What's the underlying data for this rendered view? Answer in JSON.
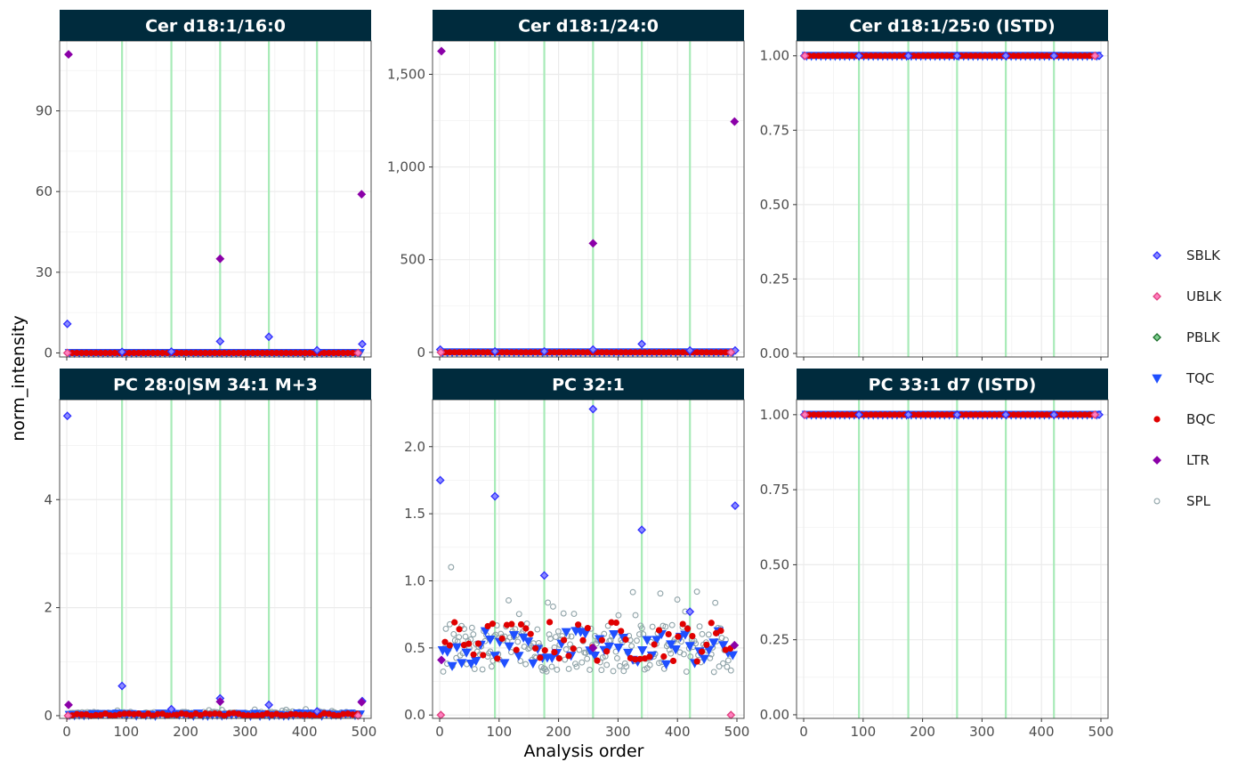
{
  "chart_data": {
    "type": "scatter",
    "xlabel": "Analysis order",
    "ylabel": "norm_intensity",
    "x_ticks": [
      0,
      100,
      200,
      300,
      400,
      500
    ],
    "x_tick_labels": [
      "0",
      "100",
      "200",
      "300",
      "400",
      "500"
    ],
    "xlim": [
      -12,
      512
    ],
    "batch_lines": [
      93,
      176,
      258,
      340,
      421
    ],
    "legend": {
      "position": "right",
      "entries": [
        {
          "key": "SBLK",
          "label": "SBLK",
          "shape": "diamond",
          "fill": "#8a8aff",
          "stroke": "#2e2eff"
        },
        {
          "key": "UBLK",
          "label": "UBLK",
          "shape": "diamond",
          "fill": "#ff7fbf",
          "stroke": "#e0407f"
        },
        {
          "key": "PBLK",
          "label": "PBLK",
          "shape": "diamond",
          "fill": "#7fcf8f",
          "stroke": "#1a6e2a"
        },
        {
          "key": "TQC",
          "label": "TQC",
          "shape": "triangle-down",
          "fill": "#1f4fff",
          "stroke": "#1f4fff"
        },
        {
          "key": "BQC",
          "label": "BQC",
          "shape": "circle",
          "fill": "#e00000",
          "stroke": "#e00000"
        },
        {
          "key": "LTR",
          "label": "LTR",
          "shape": "diamond",
          "fill": "#8b00a8",
          "stroke": "#8b00a8"
        },
        {
          "key": "SPL",
          "label": "SPL",
          "shape": "circle-open",
          "fill": "none",
          "stroke": "#8fa3a8"
        }
      ]
    },
    "panels": [
      {
        "title": "Cer d18:1/16:0",
        "ylim": [
          -1.5,
          116
        ],
        "y_ticks": [
          0,
          30,
          60,
          90
        ],
        "y_tick_labels": [
          "0",
          "30",
          "60",
          "90"
        ],
        "baseline": {
          "SPL": 0,
          "TQC": 0,
          "BQC": 0,
          "SBLK": 0,
          "UBLK": 0,
          "spread": 0
        },
        "points": {
          "SBLK": [
            [
              1,
              10.8
            ],
            [
              93,
              0.4
            ],
            [
              176,
              0.5
            ],
            [
              258,
              4.3
            ],
            [
              340,
              6.0
            ],
            [
              421,
              1.0
            ],
            [
              497,
              3.3
            ]
          ],
          "UBLK": [
            [
              1,
              0
            ],
            [
              490,
              0
            ]
          ],
          "LTR": [
            [
              3,
              111
            ],
            [
              258,
              35
            ],
            [
              496,
              59
            ]
          ]
        }
      },
      {
        "title": "Cer d18:1/24:0",
        "ylim": [
          -25,
          1680
        ],
        "y_ticks": [
          0,
          500,
          1000,
          1500
        ],
        "y_tick_labels": [
          "0",
          "500",
          "1,000",
          "1,500"
        ],
        "baseline": {
          "SPL": 0,
          "TQC": 0,
          "BQC": 0,
          "SBLK": 0,
          "UBLK": 0,
          "spread": 0
        },
        "points": {
          "SBLK": [
            [
              1,
              15
            ],
            [
              93,
              5
            ],
            [
              176,
              5
            ],
            [
              258,
              15
            ],
            [
              340,
              45
            ],
            [
              421,
              10
            ],
            [
              497,
              10
            ]
          ],
          "UBLK": [
            [
              2,
              0
            ],
            [
              490,
              0
            ]
          ],
          "LTR": [
            [
              3,
              1625
            ],
            [
              258,
              588
            ],
            [
              496,
              1245
            ]
          ]
        }
      },
      {
        "title": "Cer d18:1/25:0 (ISTD)",
        "ylim": [
          -0.012,
          1.05
        ],
        "y_ticks": [
          0,
          0.25,
          0.5,
          0.75,
          1.0
        ],
        "y_tick_labels": [
          "0.00",
          "0.25",
          "0.50",
          "0.75",
          "1.00"
        ],
        "baseline": {
          "SPL": 1,
          "TQC": 1,
          "BQC": 1,
          "SBLK": 1,
          "UBLK": 1,
          "spread": 0
        },
        "points": {
          "SBLK": [
            [
              1,
              1
            ],
            [
              93,
              1
            ],
            [
              176,
              1
            ],
            [
              258,
              1
            ],
            [
              340,
              1
            ],
            [
              421,
              1
            ],
            [
              497,
              1
            ]
          ],
          "UBLK": [
            [
              2,
              1
            ],
            [
              490,
              1
            ]
          ],
          "LTR": []
        }
      },
      {
        "title": "PC 28:0|SM 34:1 M+3",
        "ylim": [
          -0.05,
          5.85
        ],
        "y_ticks": [
          0,
          2,
          4
        ],
        "y_tick_labels": [
          "0",
          "2",
          "4"
        ],
        "baseline": {
          "SPL": 0.04,
          "TQC": 0.02,
          "BQC": 0.02,
          "SBLK": 0.03,
          "UBLK": 0,
          "spread": 0.03
        },
        "points": {
          "SBLK": [
            [
              1,
              5.55
            ],
            [
              93,
              0.55
            ],
            [
              176,
              0.12
            ],
            [
              258,
              0.32
            ],
            [
              340,
              0.2
            ],
            [
              421,
              0.08
            ],
            [
              497,
              0.27
            ]
          ],
          "UBLK": [
            [
              2,
              0
            ],
            [
              490,
              0
            ]
          ],
          "LTR": [
            [
              3,
              0.2
            ],
            [
              258,
              0.26
            ],
            [
              496,
              0.25
            ]
          ]
        }
      },
      {
        "title": "PC 32:1",
        "ylim": [
          -0.025,
          2.35
        ],
        "y_ticks": [
          0,
          0.5,
          1.0,
          1.5,
          2.0
        ],
        "y_tick_labels": [
          "0.0",
          "0.5",
          "1.0",
          "1.5",
          "2.0"
        ],
        "baseline": {
          "SPL": 0.5,
          "TQC": 0.5,
          "BQC": 0.55,
          "SBLK": 0.5,
          "UBLK": 0,
          "spread": 0.18
        },
        "points": {
          "SBLK": [
            [
              1,
              1.75
            ],
            [
              93,
              1.63
            ],
            [
              176,
              1.04
            ],
            [
              258,
              2.28
            ],
            [
              340,
              1.38
            ],
            [
              421,
              0.77
            ],
            [
              497,
              1.56
            ]
          ],
          "UBLK": [
            [
              2,
              0
            ],
            [
              490,
              0
            ]
          ],
          "LTR": [
            [
              3,
              0.41
            ],
            [
              258,
              0.5
            ],
            [
              496,
              0.52
            ]
          ]
        }
      },
      {
        "title": "PC 33:1 d7 (ISTD)",
        "ylim": [
          -0.012,
          1.05
        ],
        "y_ticks": [
          0,
          0.25,
          0.5,
          0.75,
          1.0
        ],
        "y_tick_labels": [
          "0.00",
          "0.25",
          "0.50",
          "0.75",
          "1.00"
        ],
        "baseline": {
          "SPL": 1,
          "TQC": 1,
          "BQC": 1,
          "SBLK": 1,
          "UBLK": 1,
          "spread": 0
        },
        "points": {
          "SBLK": [
            [
              1,
              1
            ],
            [
              93,
              1
            ],
            [
              176,
              1
            ],
            [
              258,
              1
            ],
            [
              340,
              1
            ],
            [
              421,
              1
            ],
            [
              497,
              1
            ]
          ],
          "UBLK": [
            [
              2,
              1
            ],
            [
              490,
              1
            ]
          ],
          "LTR": []
        }
      }
    ]
  }
}
